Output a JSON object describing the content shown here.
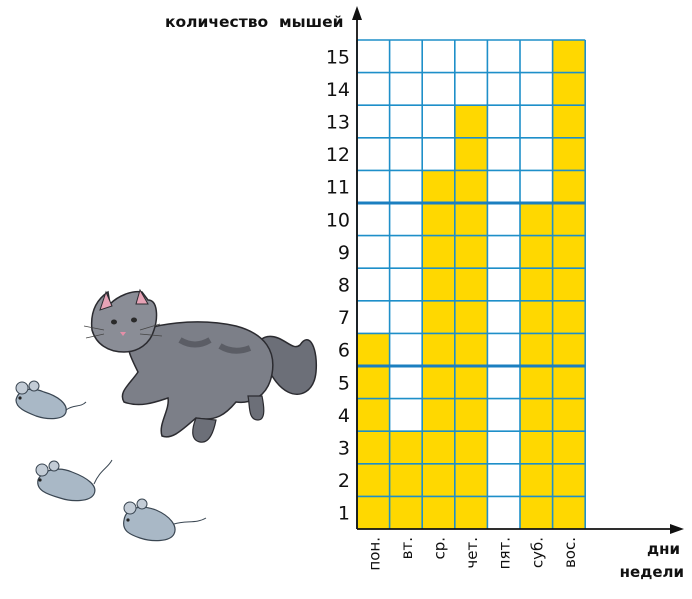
{
  "chart_data": {
    "type": "bar",
    "title": "",
    "ylabel": "количество  мышей",
    "xlabel": "дни недели",
    "xlabel_lines": [
      "дни",
      "недели"
    ],
    "categories": [
      "пон.",
      "вт.",
      "ср.",
      "чет.",
      "пят.",
      "суб.",
      "вос."
    ],
    "values": [
      6,
      3,
      11,
      13,
      0,
      10,
      15
    ],
    "y_ticks": [
      1,
      2,
      3,
      4,
      5,
      6,
      7,
      8,
      9,
      10,
      11,
      12,
      13,
      14,
      15
    ],
    "ylim": [
      0,
      15
    ],
    "grid": true,
    "highlighted_gridlines": [
      5,
      10
    ],
    "legend": "none"
  },
  "colors": {
    "bar": "#ffd800",
    "grid": "#1e8fc9",
    "grid_bold": "#1b7fc0",
    "axis": "#111111"
  },
  "illustration": {
    "description_icons": [
      "cat-icon",
      "mouse-icon",
      "mouse-icon",
      "mouse-icon"
    ]
  }
}
